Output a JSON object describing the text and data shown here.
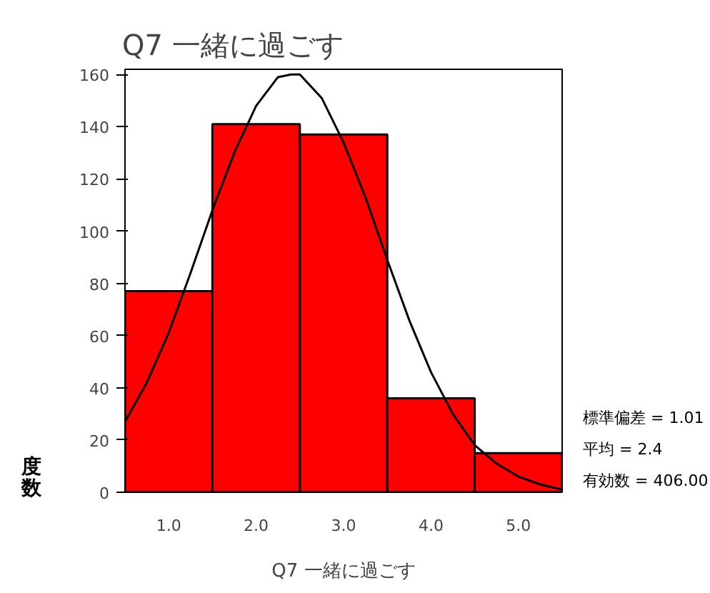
{
  "chart_data": {
    "type": "histogram",
    "title": "Q7 一緒に過ごす",
    "xlabel": "Q7 一緒に過ごす",
    "ylabel": "度数",
    "bins": [
      0.5,
      1.5,
      2.5,
      3.5,
      4.5,
      5.5
    ],
    "values": [
      77,
      141,
      137,
      36,
      15
    ],
    "color": "#ff0000",
    "series": [
      {
        "type": "line",
        "color": "#000000",
        "x": [
          0.5,
          0.75,
          1.0,
          1.25,
          1.5,
          1.75,
          2.0,
          2.25,
          2.4,
          2.5,
          2.75,
          3.0,
          3.25,
          3.5,
          3.75,
          4.0,
          4.25,
          4.5,
          4.75,
          5.0,
          5.25,
          5.5
        ],
        "values": [
          27,
          42,
          61,
          84,
          108,
          130,
          148,
          159,
          160,
          160,
          151,
          134,
          113,
          89,
          66,
          46,
          30,
          18,
          11,
          6,
          3,
          1
        ]
      }
    ],
    "xlim": [
      0.5,
      5.5
    ],
    "ylim": [
      0,
      162
    ],
    "xticks": [
      {
        "value": 1,
        "label": "1.0"
      },
      {
        "value": 2,
        "label": "2.0"
      },
      {
        "value": 3,
        "label": "3.0"
      },
      {
        "value": 4,
        "label": "4.0"
      },
      {
        "value": 5,
        "label": "5.0"
      }
    ],
    "yticks": [
      0,
      20,
      40,
      60,
      80,
      100,
      120,
      140,
      160
    ],
    "annotations": [
      "標準偏差 = 1.01",
      "平均 = 2.4",
      "有効数 = 406.00"
    ]
  }
}
